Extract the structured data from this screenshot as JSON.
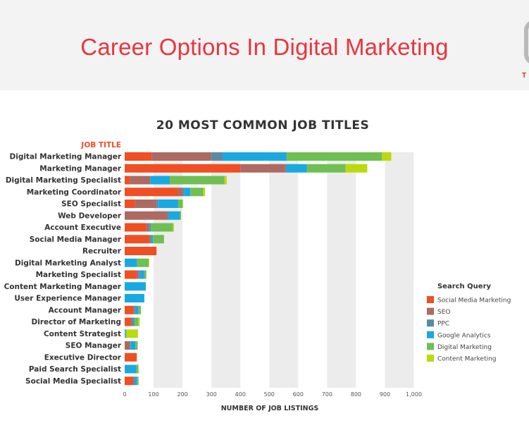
{
  "slide": {
    "title": "Career Options In Digital Marketing",
    "logo_text": "T"
  },
  "chart_data": {
    "type": "bar",
    "orientation": "horizontal",
    "stacked": true,
    "title": "20 MOST COMMON JOB TITLES",
    "category_axis_title": "JOB TITLE",
    "xlabel": "NUMBER OF JOB LISTINGS",
    "xlim": [
      0,
      1000
    ],
    "xticks": [
      "0",
      "100",
      "200",
      "300",
      "400",
      "500",
      "600",
      "700",
      "800",
      "900",
      "1,000"
    ],
    "grid": "alternating vertical bands",
    "legend_title": "Search Query",
    "legend_position": "right",
    "categories": [
      "Digital Marketing Manager",
      "Marketing Manager",
      "Digital Marketing Specialist",
      "Marketing Coordinator",
      "SEO Specialist",
      "Web Developer",
      "Account Executive",
      "Social Media Manager",
      "Recruiter",
      "Digital Marketing Analyst",
      "Marketing Specialist",
      "Content Marketing Manager",
      "User Experience Manager",
      "Account Manager",
      "Director of Marketing",
      "Content Strategist",
      "SEO Manager",
      "Executive Director",
      "Paid Search Specialist",
      "Social Media Specialist"
    ],
    "series": [
      {
        "name": "Social Media Marketing",
        "color": "#f04e23",
        "values": [
          93,
          400,
          18,
          185,
          35,
          0,
          75,
          85,
          110,
          0,
          40,
          0,
          0,
          30,
          22,
          0,
          0,
          42,
          0,
          28
        ]
      },
      {
        "name": "SEO",
        "color": "#ad6a63",
        "values": [
          207,
          155,
          70,
          15,
          75,
          150,
          10,
          3,
          0,
          0,
          8,
          0,
          0,
          5,
          6,
          0,
          18,
          0,
          0,
          5
        ]
      },
      {
        "name": "PPC",
        "color": "#5b8aa3",
        "values": [
          40,
          5,
          0,
          5,
          5,
          0,
          0,
          5,
          0,
          0,
          5,
          0,
          0,
          0,
          0,
          0,
          2,
          0,
          0,
          0
        ]
      },
      {
        "name": "Google Analytics",
        "color": "#19a9e1",
        "values": [
          220,
          70,
          68,
          22,
          70,
          40,
          5,
          5,
          0,
          43,
          14,
          73,
          68,
          13,
          6,
          3,
          17,
          0,
          40,
          10
        ]
      },
      {
        "name": "Digital Marketing",
        "color": "#6fbf53",
        "values": [
          330,
          134,
          189,
          45,
          15,
          5,
          77,
          38,
          0,
          40,
          8,
          0,
          0,
          8,
          14,
          3,
          8,
          0,
          8,
          5
        ]
      },
      {
        "name": "Content Marketing",
        "color": "#bcd90e",
        "values": [
          32,
          75,
          8,
          6,
          2,
          0,
          3,
          0,
          0,
          2,
          0,
          0,
          0,
          0,
          4,
          40,
          0,
          0,
          0,
          0
        ]
      }
    ]
  }
}
